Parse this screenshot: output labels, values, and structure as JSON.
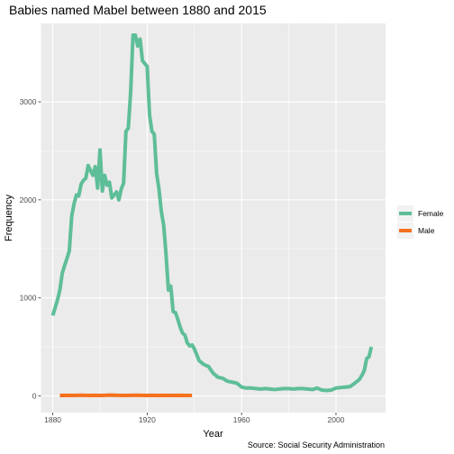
{
  "chart_data": {
    "type": "line",
    "title": "Babies named Mabel between 1880 and 2015",
    "xlabel": "Year",
    "ylabel": "Frequency",
    "caption": "Source: Social Security Administration",
    "xlim": [
      1875,
      2021
    ],
    "ylim": [
      -170,
      3800
    ],
    "xticks": [
      1880,
      1920,
      1960,
      2000
    ],
    "yticks": [
      0,
      1000,
      2000,
      3000
    ],
    "grid": true,
    "legend_position": "right",
    "series": [
      {
        "name": "Female",
        "color": "#5ebe98",
        "x": [
          1880,
          1881,
          1882,
          1883,
          1884,
          1885,
          1886,
          1887,
          1888,
          1889,
          1890,
          1891,
          1892,
          1893,
          1894,
          1895,
          1896,
          1897,
          1898,
          1899,
          1900,
          1901,
          1902,
          1903,
          1904,
          1905,
          1906,
          1907,
          1908,
          1909,
          1910,
          1911,
          1912,
          1913,
          1914,
          1915,
          1916,
          1917,
          1918,
          1919,
          1920,
          1921,
          1922,
          1923,
          1924,
          1925,
          1926,
          1927,
          1928,
          1929,
          1930,
          1931,
          1932,
          1933,
          1934,
          1935,
          1936,
          1937,
          1938,
          1939,
          1940,
          1942,
          1944,
          1946,
          1948,
          1950,
          1952,
          1954,
          1956,
          1958,
          1960,
          1962,
          1964,
          1966,
          1968,
          1970,
          1972,
          1974,
          1976,
          1978,
          1980,
          1982,
          1984,
          1986,
          1988,
          1990,
          1992,
          1994,
          1996,
          1998,
          2000,
          2002,
          2004,
          2006,
          2008,
          2010,
          2011,
          2012,
          2013,
          2014,
          2015
        ],
        "values": [
          820,
          900,
          980,
          1080,
          1250,
          1330,
          1400,
          1480,
          1830,
          1960,
          2050,
          2040,
          2160,
          2200,
          2220,
          2350,
          2300,
          2250,
          2340,
          2120,
          2510,
          2090,
          2250,
          2150,
          2180,
          2020,
          2050,
          2080,
          2000,
          2110,
          2170,
          2700,
          2730,
          3100,
          3680,
          3680,
          3570,
          3640,
          3420,
          3390,
          3360,
          2870,
          2700,
          2670,
          2270,
          2110,
          1880,
          1740,
          1440,
          1080,
          1120,
          860,
          850,
          780,
          700,
          640,
          620,
          540,
          510,
          520,
          480,
          360,
          320,
          300,
          230,
          190,
          180,
          150,
          140,
          130,
          90,
          80,
          80,
          75,
          70,
          75,
          70,
          65,
          70,
          75,
          75,
          70,
          75,
          75,
          70,
          65,
          80,
          60,
          55,
          60,
          80,
          85,
          90,
          95,
          130,
          170,
          210,
          260,
          380,
          400,
          500
        ]
      },
      {
        "name": "Male",
        "color": "#f5711d",
        "x": [
          1883,
          1886,
          1889,
          1892,
          1895,
          1898,
          1901,
          1904,
          1907,
          1910,
          1913,
          1916,
          1919,
          1922,
          1925,
          1928,
          1931,
          1934,
          1937,
          1939
        ],
        "values": [
          5,
          6,
          5,
          7,
          5,
          6,
          5,
          8,
          6,
          5,
          6,
          7,
          5,
          6,
          5,
          6,
          5,
          6,
          5,
          5
        ]
      }
    ]
  }
}
